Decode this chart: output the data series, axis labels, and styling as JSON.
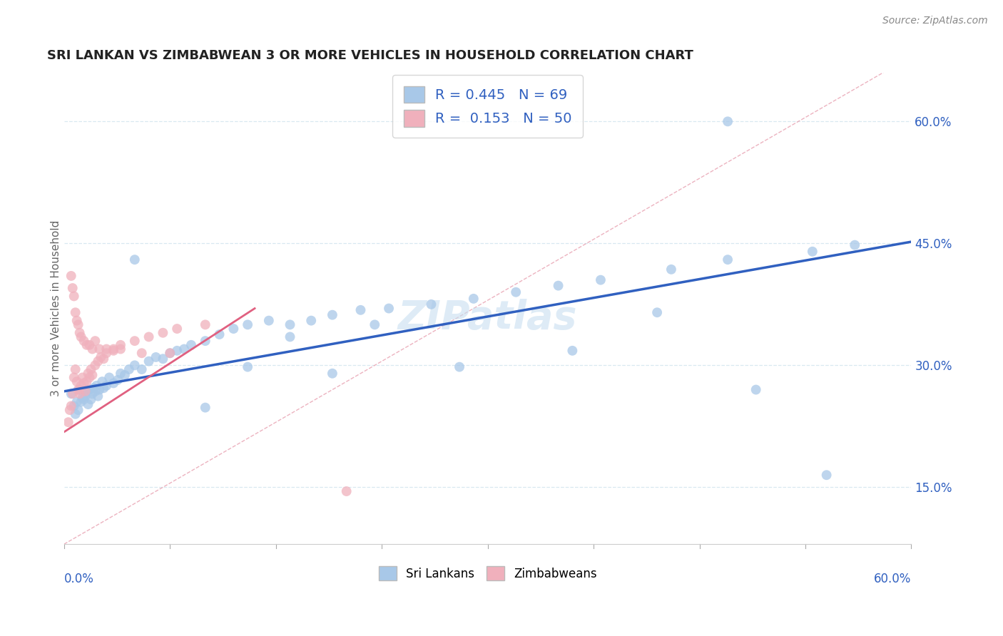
{
  "title": "SRI LANKAN VS ZIMBABWEAN 3 OR MORE VEHICLES IN HOUSEHOLD CORRELATION CHART",
  "source": "Source: ZipAtlas.com",
  "ylabel": "3 or more Vehicles in Household",
  "xmin": 0.0,
  "xmax": 0.6,
  "ymin": 0.08,
  "ymax": 0.66,
  "yticks": [
    0.15,
    0.3,
    0.45,
    0.6
  ],
  "ytick_labels": [
    "15.0%",
    "30.0%",
    "45.0%",
    "60.0%"
  ],
  "blue_R": 0.445,
  "blue_N": 69,
  "pink_R": 0.153,
  "pink_N": 50,
  "blue_color": "#a8c8e8",
  "pink_color": "#f0b0bc",
  "blue_line_color": "#3060c0",
  "pink_line_color": "#e06080",
  "diag_line_color": "#e8a0b0",
  "text_color": "#3060c0",
  "grid_color": "#d8e8f0",
  "blue_trend_x0": 0.0,
  "blue_trend_y0": 0.268,
  "blue_trend_x1": 0.6,
  "blue_trend_y1": 0.452,
  "pink_trend_x0": 0.0,
  "pink_trend_y0": 0.218,
  "pink_trend_x1": 0.135,
  "pink_trend_y1": 0.37,
  "blue_scatter_x": [
    0.005,
    0.007,
    0.008,
    0.009,
    0.01,
    0.011,
    0.012,
    0.013,
    0.014,
    0.015,
    0.016,
    0.017,
    0.018,
    0.019,
    0.02,
    0.021,
    0.022,
    0.023,
    0.024,
    0.025,
    0.027,
    0.028,
    0.03,
    0.032,
    0.035,
    0.038,
    0.04,
    0.043,
    0.046,
    0.05,
    0.055,
    0.06,
    0.065,
    0.07,
    0.075,
    0.08,
    0.09,
    0.1,
    0.11,
    0.12,
    0.13,
    0.145,
    0.16,
    0.175,
    0.19,
    0.21,
    0.23,
    0.26,
    0.29,
    0.32,
    0.35,
    0.38,
    0.43,
    0.47,
    0.53,
    0.56,
    0.05,
    0.085,
    0.1,
    0.13,
    0.16,
    0.19,
    0.22,
    0.28,
    0.36,
    0.42,
    0.49,
    0.54,
    0.47
  ],
  "blue_scatter_y": [
    0.265,
    0.25,
    0.24,
    0.255,
    0.245,
    0.27,
    0.255,
    0.26,
    0.258,
    0.262,
    0.268,
    0.252,
    0.27,
    0.258,
    0.265,
    0.272,
    0.268,
    0.275,
    0.262,
    0.27,
    0.28,
    0.272,
    0.275,
    0.285,
    0.278,
    0.282,
    0.29,
    0.288,
    0.295,
    0.3,
    0.295,
    0.305,
    0.31,
    0.308,
    0.315,
    0.318,
    0.325,
    0.33,
    0.338,
    0.345,
    0.35,
    0.355,
    0.35,
    0.355,
    0.362,
    0.368,
    0.37,
    0.375,
    0.382,
    0.39,
    0.398,
    0.405,
    0.418,
    0.43,
    0.44,
    0.448,
    0.43,
    0.32,
    0.248,
    0.298,
    0.335,
    0.29,
    0.35,
    0.298,
    0.318,
    0.365,
    0.27,
    0.165,
    0.6
  ],
  "pink_scatter_x": [
    0.003,
    0.004,
    0.005,
    0.006,
    0.007,
    0.008,
    0.009,
    0.01,
    0.011,
    0.012,
    0.013,
    0.014,
    0.015,
    0.016,
    0.017,
    0.018,
    0.019,
    0.02,
    0.022,
    0.024,
    0.026,
    0.028,
    0.03,
    0.035,
    0.04,
    0.05,
    0.06,
    0.07,
    0.08,
    0.1,
    0.005,
    0.006,
    0.007,
    0.008,
    0.009,
    0.01,
    0.011,
    0.012,
    0.014,
    0.016,
    0.018,
    0.02,
    0.022,
    0.025,
    0.03,
    0.035,
    0.04,
    0.055,
    0.075,
    0.2
  ],
  "pink_scatter_y": [
    0.23,
    0.245,
    0.25,
    0.265,
    0.285,
    0.295,
    0.28,
    0.27,
    0.265,
    0.275,
    0.285,
    0.278,
    0.268,
    0.28,
    0.29,
    0.285,
    0.295,
    0.288,
    0.3,
    0.305,
    0.31,
    0.308,
    0.315,
    0.32,
    0.325,
    0.33,
    0.335,
    0.34,
    0.345,
    0.35,
    0.41,
    0.395,
    0.385,
    0.365,
    0.355,
    0.35,
    0.34,
    0.335,
    0.33,
    0.325,
    0.325,
    0.32,
    0.33,
    0.32,
    0.32,
    0.318,
    0.32,
    0.315,
    0.315,
    0.145
  ],
  "watermark_text": "ZIPatlas",
  "watermark_color": "#c8dff0",
  "background_color": "#ffffff"
}
